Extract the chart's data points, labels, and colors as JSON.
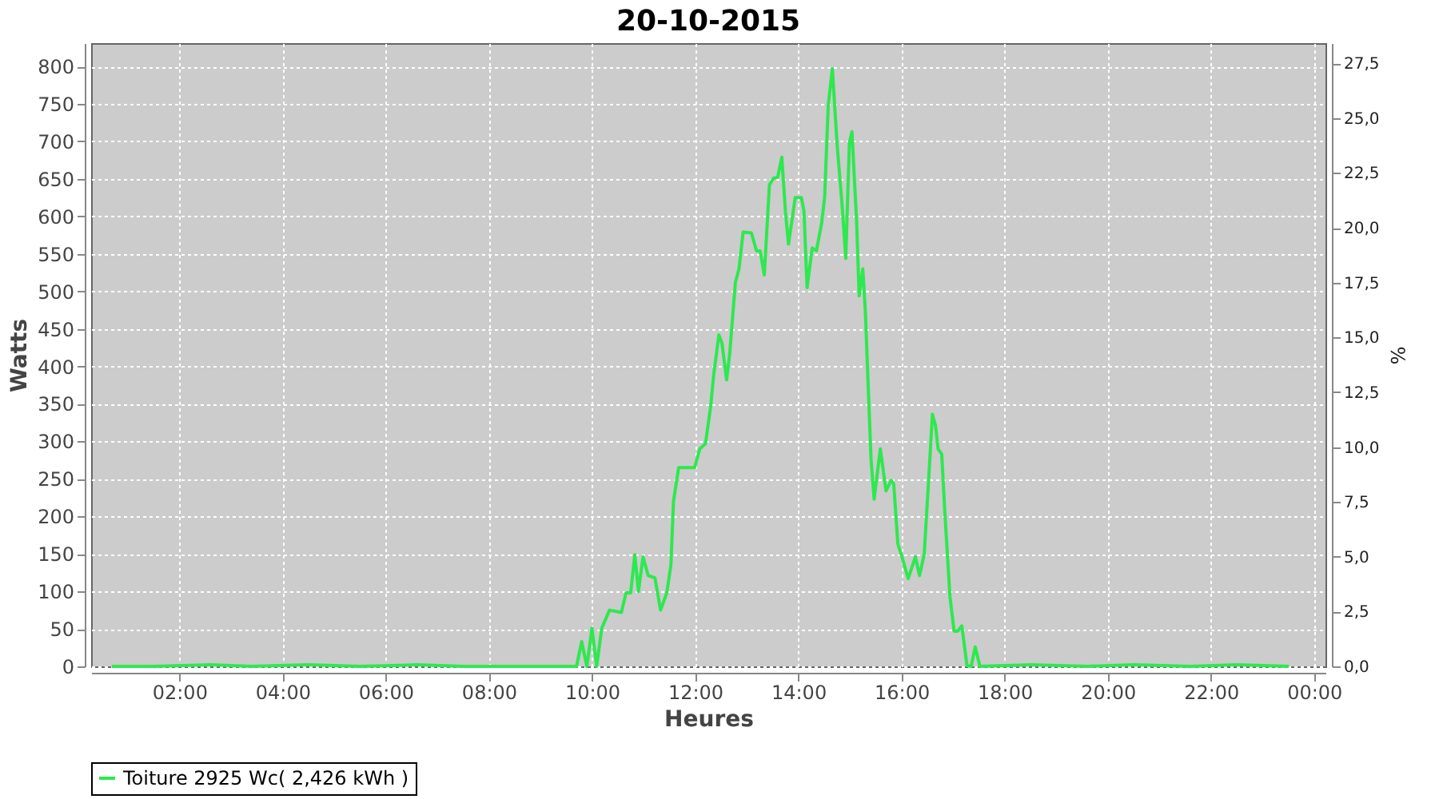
{
  "chart_data": {
    "type": "line",
    "title": "20-10-2015",
    "xlabel": "Heures",
    "ylabel": "Watts",
    "y2label": "%",
    "x": [
      0.69,
      1.5,
      2.6,
      3.4,
      4.5,
      5.5,
      6.6,
      7.5,
      8.6,
      9.3,
      9.7,
      9.8,
      9.9,
      10.0,
      10.09,
      10.19,
      10.34,
      10.57,
      10.66,
      10.75,
      10.83,
      10.9,
      10.99,
      11.09,
      11.22,
      11.33,
      11.45,
      11.53,
      11.58,
      11.68,
      11.99,
      12.09,
      12.2,
      12.3,
      12.36,
      12.46,
      12.52,
      12.61,
      12.67,
      12.78,
      12.85,
      12.93,
      13.09,
      13.19,
      13.26,
      13.34,
      13.44,
      13.52,
      13.6,
      13.68,
      13.75,
      13.81,
      13.94,
      14.06,
      14.11,
      14.17,
      14.27,
      14.35,
      14.45,
      14.51,
      14.58,
      14.66,
      14.75,
      14.85,
      14.92,
      14.99,
      15.04,
      15.13,
      15.18,
      15.25,
      15.3,
      15.35,
      15.41,
      15.47,
      15.54,
      15.59,
      15.7,
      15.8,
      15.85,
      15.93,
      16.01,
      16.13,
      16.27,
      16.35,
      16.44,
      16.52,
      16.6,
      16.66,
      16.71,
      16.78,
      16.84,
      16.94,
      17.02,
      17.09,
      17.17,
      17.27,
      17.35,
      17.43,
      17.52,
      18.5,
      19.6,
      20.5,
      21.6,
      22.5,
      23.51
    ],
    "series": [
      {
        "name": "Toiture 2925 Wc( 2,426 kWh )",
        "color": "#2ee84f",
        "values": [
          0,
          0,
          2,
          0,
          2,
          0,
          2,
          0,
          0,
          0,
          0,
          33,
          0,
          51,
          0,
          51,
          75,
          72,
          98,
          98,
          149,
          100,
          146,
          121,
          118,
          75,
          98,
          135,
          220,
          265,
          265,
          290,
          297,
          346,
          389,
          442,
          431,
          382,
          417,
          512,
          530,
          579,
          578,
          554,
          554,
          522,
          642,
          651,
          652,
          679,
          607,
          563,
          625,
          625,
          607,
          505,
          558,
          554,
          590,
          625,
          748,
          797,
          698,
          614,
          544,
          698,
          713,
          593,
          494,
          530,
          473,
          382,
          276,
          223,
          262,
          290,
          234,
          248,
          243,
          163,
          146,
          117,
          146,
          121,
          149,
          241,
          336,
          321,
          290,
          283,
          206,
          93,
          47,
          47,
          54,
          1,
          0,
          26,
          0,
          2,
          0,
          2,
          0,
          2,
          0
        ]
      }
    ],
    "xlim": [
      0.29,
      24.22
    ],
    "ylim": [
      0,
      831
    ],
    "y2lim": [
      0,
      28.42
    ],
    "xticks": [
      {
        "value": 2,
        "label": "02:00"
      },
      {
        "value": 4,
        "label": "04:00"
      },
      {
        "value": 6,
        "label": "06:00"
      },
      {
        "value": 8,
        "label": "08:00"
      },
      {
        "value": 10,
        "label": "10:00"
      },
      {
        "value": 12,
        "label": "12:00"
      },
      {
        "value": 14,
        "label": "14:00"
      },
      {
        "value": 16,
        "label": "16:00"
      },
      {
        "value": 18,
        "label": "18:00"
      },
      {
        "value": 20,
        "label": "20:00"
      },
      {
        "value": 22,
        "label": "22:00"
      },
      {
        "value": 24,
        "label": "00:00"
      }
    ],
    "yticks": [
      0,
      50,
      100,
      150,
      200,
      250,
      300,
      350,
      400,
      450,
      500,
      550,
      600,
      650,
      700,
      750,
      800
    ],
    "y2ticks": [
      {
        "value": 0,
        "label": "0,0"
      },
      {
        "value": 2.5,
        "label": "2,5"
      },
      {
        "value": 5,
        "label": "5,0"
      },
      {
        "value": 7.5,
        "label": "7,5"
      },
      {
        "value": 10,
        "label": "10,0"
      },
      {
        "value": 12.5,
        "label": "12,5"
      },
      {
        "value": 15,
        "label": "15,0"
      },
      {
        "value": 17.5,
        "label": "17,5"
      },
      {
        "value": 20,
        "label": "20,0"
      },
      {
        "value": 22.5,
        "label": "22,5"
      },
      {
        "value": 25,
        "label": "25,0"
      },
      {
        "value": 27.5,
        "label": "27,5"
      }
    ],
    "grid": true,
    "legend": "bottom",
    "marker": "none",
    "line_style": "solid"
  }
}
